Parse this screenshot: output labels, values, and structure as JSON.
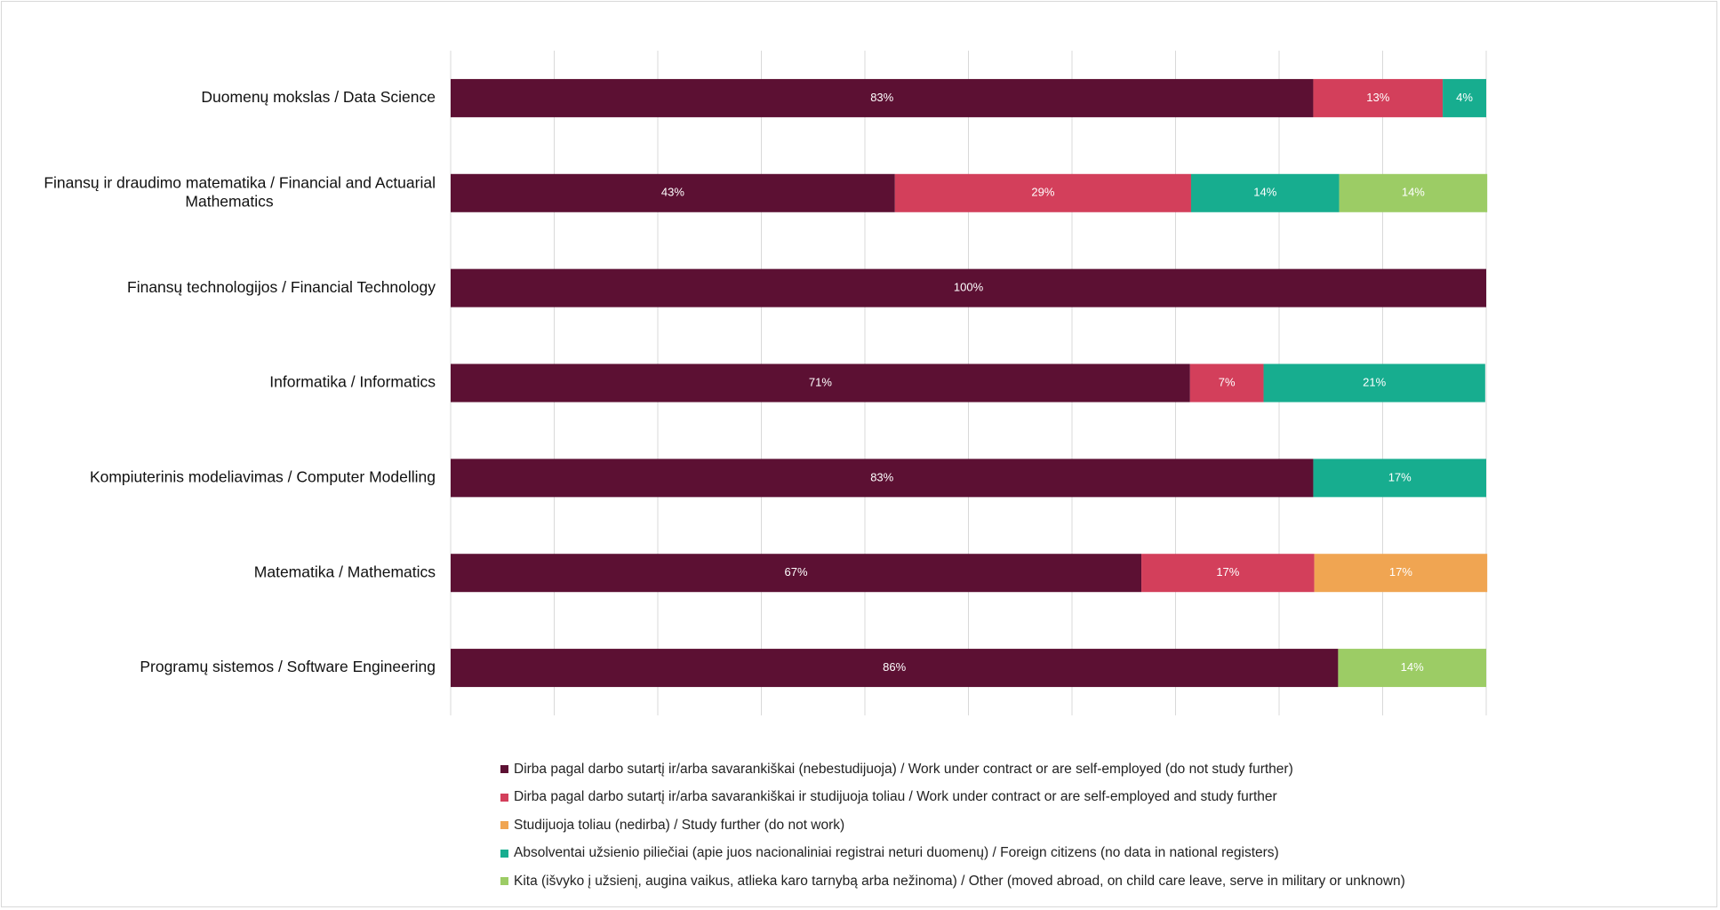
{
  "chart_data": {
    "type": "bar",
    "orientation": "horizontal",
    "stacked": true,
    "percent_stacked": true,
    "categories": [
      "Duomenų mokslas / Data Science",
      "Finansų ir draudimo matematika / Financial and Actuarial Mathematics",
      "Finansų technologijos / Financial Technology",
      "Informatika / Informatics",
      "Kompiuterinis modeliavimas / Computer Modelling",
      "Matematika / Mathematics",
      "Programų sistemos / Software Engineering"
    ],
    "category_lines": [
      [
        "Duomenų mokslas / Data Science"
      ],
      [
        "Finansų ir draudimo matematika / Financial and Actuarial",
        "Mathematics"
      ],
      [
        "Finansų technologijos / Financial Technology"
      ],
      [
        "Informatika / Informatics"
      ],
      [
        "Kompiuterinis modeliavimas / Computer Modelling"
      ],
      [
        "Matematika / Mathematics"
      ],
      [
        "Programų sistemos / Software Engineering"
      ]
    ],
    "series": [
      {
        "name": "Dirba pagal darbo sutartį ir/arba savarankiškai (nebestudijuoja) / Work under contract or are self-employed (do not study further)",
        "color": "#5c1033",
        "values": [
          83.3,
          42.9,
          100,
          71.4,
          83.3,
          66.7,
          85.7
        ],
        "labels": [
          "83%",
          "43%",
          "100%",
          "71%",
          "83%",
          "67%",
          "86%"
        ]
      },
      {
        "name": "Dirba pagal darbo sutartį ir/arba savarankiškai  ir studijuoja toliau / Work under contract or are self-employed and study further",
        "color": "#d33f5b",
        "values": [
          12.5,
          28.6,
          0,
          7.1,
          0,
          16.7,
          0
        ],
        "labels": [
          "13%",
          "29%",
          "",
          "7%",
          "",
          "17%",
          ""
        ]
      },
      {
        "name": "Studijuoja toliau (nedirba) / Study further (do not work)",
        "color": "#f0a552",
        "values": [
          0,
          0,
          0,
          0,
          0,
          16.7,
          0
        ],
        "labels": [
          "",
          "",
          "",
          "",
          "",
          "17%",
          ""
        ]
      },
      {
        "name": "Absolventai užsienio piliečiai (apie juos nacionaliniai registrai neturi duomenų) / Foreign citizens (no data in national registers)",
        "color": "#17ad8f",
        "values": [
          4.2,
          14.3,
          0,
          21.4,
          16.7,
          0,
          0
        ],
        "labels": [
          "4%",
          "14%",
          "",
          "21%",
          "17%",
          "",
          ""
        ]
      },
      {
        "name": "Kita (išvyko į užsienį, augina vaikus, atlieka karo tarnybą arba nežinoma) / Other (moved abroad, on child care leave, serve in military or unknown)",
        "color": "#9ccc65",
        "values": [
          0,
          14.3,
          0,
          0,
          0,
          0,
          14.3
        ],
        "labels": [
          "",
          "14%",
          "",
          "",
          "",
          "",
          "14%"
        ]
      }
    ],
    "xlim": [
      0,
      100
    ],
    "grid": true,
    "legend_position": "bottom"
  }
}
